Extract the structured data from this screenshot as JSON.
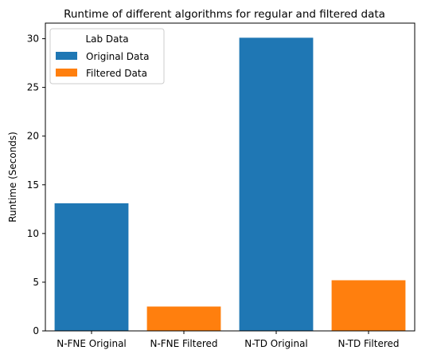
{
  "chart_data": {
    "type": "bar",
    "title": "Runtime of different algorithms for regular and filtered data",
    "xlabel": "",
    "ylabel": "Runtime (Seconds)",
    "categories": [
      "N-FNE Original",
      "N-FNE Filtered",
      "N-TD Original",
      "N-TD Filtered"
    ],
    "values": [
      13.1,
      2.5,
      30.1,
      5.2
    ],
    "bar_series": [
      "Original Data",
      "Filtered Data",
      "Original Data",
      "Filtered Data"
    ],
    "ylim": [
      0,
      31.6
    ],
    "yticks": [
      0,
      5,
      10,
      15,
      20,
      25,
      30
    ],
    "grid": false,
    "legend": {
      "title": "Lab Data",
      "placement": "top-left",
      "entries": [
        {
          "name": "Original Data",
          "color": "#1f77b4"
        },
        {
          "name": "Filtered Data",
          "color": "#ff7f0e"
        }
      ]
    },
    "colors": {
      "Original Data": "#1f77b4",
      "Filtered Data": "#ff7f0e"
    }
  }
}
